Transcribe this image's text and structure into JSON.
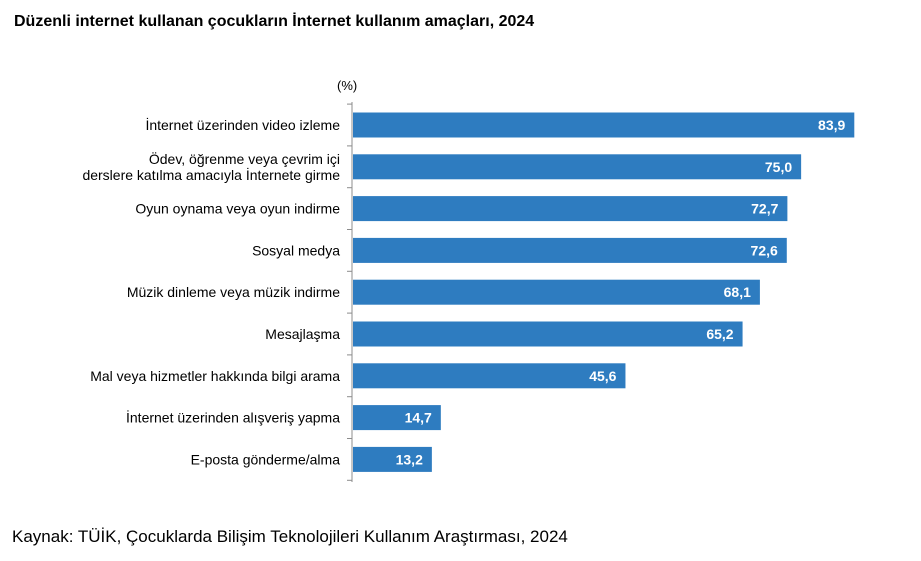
{
  "title": "Düzenli internet kullanan çocukların İnternet kullanım amaçları, 2024",
  "unit_label": "(%)",
  "source": "Kaynak: TÜİK, Çocuklarda Bilişim Teknolojileri Kullanım Araştırması, 2024",
  "colors": {
    "bar": "#2e7cc0",
    "value_text": "#ffffff"
  },
  "chart_data": {
    "type": "bar",
    "orientation": "horizontal",
    "categories": [
      [
        "İnternet üzerinden video izleme"
      ],
      [
        "Ödev, öğrenme veya çevrim içi",
        "derslere katılma amacıyla İnternete girme"
      ],
      [
        "Oyun oynama veya oyun indirme"
      ],
      [
        "Sosyal medya"
      ],
      [
        "Müzik dinleme veya müzik indirme"
      ],
      [
        "Mesajlaşma"
      ],
      [
        "Mal veya hizmetler hakkında bilgi arama"
      ],
      [
        "İnternet üzerinden alışveriş yapma"
      ],
      [
        "E-posta gönderme/alma"
      ]
    ],
    "values": [
      83.9,
      75.0,
      72.7,
      72.6,
      68.1,
      65.2,
      45.6,
      14.7,
      13.2
    ],
    "value_labels": [
      "83,9",
      "75,0",
      "72,7",
      "72,6",
      "68,1",
      "65,2",
      "45,6",
      "14,7",
      "13,2"
    ],
    "ylabel": "(%)",
    "xlim": [
      0,
      85
    ],
    "grid": false,
    "legend": "none"
  }
}
